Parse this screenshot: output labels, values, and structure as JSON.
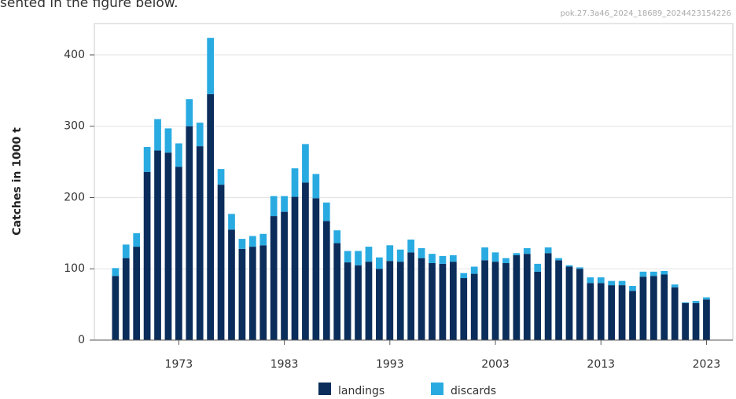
{
  "chart_data": {
    "type": "stacked_bar",
    "annotations": [
      "sented in the figure below.",
      "pok.27.3a46_2024_18689_2024423154226"
    ],
    "y_label": "Catches in 1000 t",
    "x": [
      1967,
      1968,
      1969,
      1970,
      1971,
      1972,
      1973,
      1974,
      1975,
      1976,
      1977,
      1978,
      1979,
      1980,
      1981,
      1982,
      1983,
      1984,
      1985,
      1986,
      1987,
      1988,
      1989,
      1990,
      1991,
      1992,
      1993,
      1994,
      1995,
      1996,
      1997,
      1998,
      1999,
      2000,
      2001,
      2002,
      2003,
      2004,
      2005,
      2006,
      2007,
      2008,
      2009,
      2010,
      2011,
      2012,
      2013,
      2014,
      2015,
      2016,
      2017,
      2018,
      2019,
      2020,
      2021,
      2022,
      2023
    ],
    "series": [
      {
        "name": "landings",
        "color": "#0b2d5b",
        "values": [
          90,
          115,
          131,
          236,
          266,
          263,
          243,
          300,
          272,
          345,
          218,
          155,
          128,
          131,
          133,
          174,
          180,
          201,
          221,
          199,
          167,
          136,
          109,
          105,
          110,
          100,
          111,
          110,
          123,
          115,
          108,
          107,
          110,
          87,
          93,
          112,
          110,
          108,
          119,
          121,
          96,
          122,
          112,
          103,
          100,
          80,
          80,
          77,
          77,
          69,
          89,
          90,
          92,
          74,
          52,
          52,
          57
        ]
      },
      {
        "name": "discards",
        "color": "#29abe2",
        "values": [
          11,
          19,
          19,
          35,
          44,
          34,
          33,
          38,
          33,
          79,
          22,
          22,
          14,
          15,
          16,
          28,
          22,
          40,
          54,
          34,
          26,
          18,
          16,
          20,
          21,
          16,
          22,
          17,
          18,
          14,
          13,
          11,
          9,
          7,
          10,
          18,
          13,
          7,
          3,
          8,
          11,
          8,
          3,
          2,
          2,
          8,
          8,
          6,
          6,
          7,
          7,
          6,
          5,
          4,
          1,
          3,
          3
        ]
      }
    ],
    "xlim": [
      1965,
      2025.5
    ],
    "xticks": [
      1973,
      1983,
      1993,
      2003,
      2013,
      2023
    ],
    "ylim": [
      0,
      444
    ],
    "yticks": [
      0,
      100,
      200,
      300,
      400
    ],
    "grid": true
  }
}
